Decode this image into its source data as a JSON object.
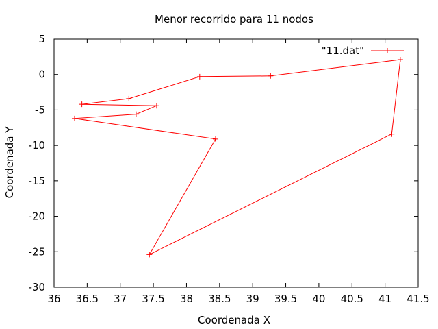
{
  "chart_data": {
    "type": "line",
    "title": "Menor recorrido para 11 nodos",
    "xlabel": "Coordenada X",
    "ylabel": "Coordenada Y",
    "xlim": [
      36,
      41.5
    ],
    "ylim": [
      -30,
      5
    ],
    "xticks": [
      36,
      36.5,
      37,
      37.5,
      38,
      38.5,
      39,
      39.5,
      40,
      40.5,
      41,
      41.5
    ],
    "xtick_labels": [
      "36",
      "36.5",
      "37",
      "37.5",
      "38",
      "38.5",
      "39",
      "39.5",
      "40",
      "40.5",
      "41",
      "41.5"
    ],
    "yticks": [
      5,
      0,
      -5,
      -10,
      -15,
      -20,
      -25,
      -30
    ],
    "ytick_labels": [
      "5",
      "0",
      "-5",
      "-10",
      "-15",
      "-20",
      "-25",
      "-30"
    ],
    "grid": false,
    "legend_position": "top-right",
    "series": [
      {
        "name": "\"11.dat\"",
        "color": "#ff0000",
        "marker": "plus",
        "x": [
          41.1,
          41.23,
          39.27,
          38.2,
          37.13,
          36.42,
          37.55,
          37.24,
          36.31,
          38.44,
          37.44,
          41.1
        ],
        "y": [
          -8.4,
          2.1,
          -0.2,
          -0.3,
          -3.4,
          -4.2,
          -4.4,
          -5.6,
          -6.2,
          -9.1,
          -25.4,
          -8.4
        ]
      }
    ]
  }
}
